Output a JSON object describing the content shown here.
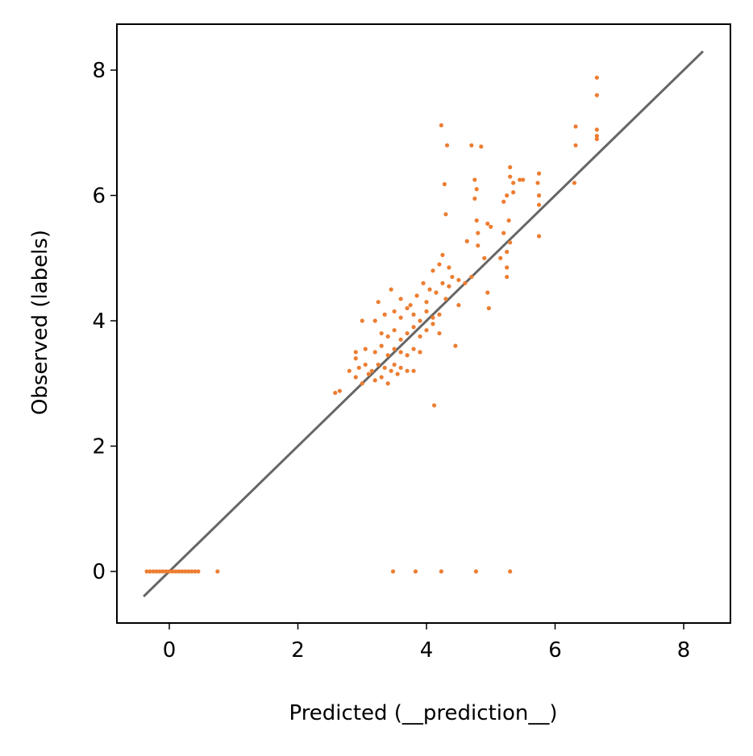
{
  "chart_data": {
    "type": "scatter",
    "xlabel": "Predicted (__prediction__)",
    "ylabel": "Observed (labels)",
    "xlim": [
      -0.815,
      8.727
    ],
    "ylim": [
      -0.823,
      8.733
    ],
    "xticks": [
      0,
      2,
      4,
      6,
      8
    ],
    "yticks": [
      0,
      2,
      4,
      6,
      8
    ],
    "grid": false,
    "reference_line": {
      "color": "#666666",
      "x": [
        -0.4,
        8.3
      ],
      "values": [
        -0.4,
        8.3
      ]
    },
    "series": [
      {
        "color": "#ed7d31",
        "x": [
          -0.35,
          -0.3,
          -0.25,
          -0.2,
          -0.15,
          -0.1,
          -0.05,
          0,
          0.05,
          0.1,
          0.15,
          0.2,
          0.25,
          0.3,
          0.35,
          0.4,
          0.45,
          0.75,
          3.48,
          3.83,
          4.23,
          4.77,
          5.3,
          2.58,
          2.65,
          2.8,
          2.9,
          2.95,
          3.0,
          3.05,
          3.1,
          3.15,
          3.2,
          3.25,
          3.3,
          3.35,
          3.4,
          3.45,
          3.5,
          3.55,
          3.6,
          3.7,
          3.8,
          2.9,
          3.05,
          3.2,
          3.3,
          3.4,
          3.5,
          3.6,
          3.7,
          3.8,
          3.9,
          3.3,
          3.4,
          3.5,
          3.6,
          3.7,
          3.8,
          3.9,
          4.0,
          4.1,
          4.2,
          3.35,
          3.5,
          3.6,
          3.7,
          3.8,
          3.9,
          4.0,
          4.1,
          4.2,
          3.2,
          3.25,
          3.45,
          3.6,
          3.75,
          3.85,
          3.95,
          4.05,
          4.15,
          4.25,
          4.35,
          4.4,
          4.5,
          4.6,
          4.7,
          4.1,
          4.2,
          4.25,
          4.35,
          4.5,
          4.45,
          4.12,
          4.0,
          4.3,
          3.0,
          2.9,
          4.23,
          4.32,
          4.28,
          4.3,
          4.7,
          4.85,
          4.75,
          4.78,
          4.75,
          4.78,
          4.8,
          4.8,
          4.9,
          4.63,
          4.95,
          4.97,
          4.95,
          5.0,
          5.15,
          5.2,
          5.25,
          5.28,
          5.3,
          5.3,
          5.35,
          5.3,
          5.25,
          5.25,
          5.25,
          5.2,
          5.35,
          5.45,
          5.5,
          5.75,
          5.75,
          5.75,
          5.75,
          5.73,
          6.32,
          6.32,
          6.3,
          6.65,
          6.65,
          6.65,
          6.65,
          6.65
        ],
        "values": [
          0,
          0,
          0,
          0,
          0,
          0,
          0,
          0,
          0,
          0,
          0,
          0,
          0,
          0,
          0,
          0,
          0,
          0,
          0,
          0,
          0,
          0,
          0,
          2.85,
          2.88,
          3.2,
          3.1,
          3.25,
          3.0,
          3.3,
          3.15,
          3.2,
          3.05,
          3.3,
          3.1,
          3.25,
          3.0,
          3.2,
          3.3,
          3.15,
          3.25,
          3.2,
          3.2,
          3.5,
          3.55,
          3.5,
          3.6,
          3.45,
          3.55,
          3.5,
          3.45,
          3.55,
          3.5,
          3.8,
          3.75,
          3.85,
          3.7,
          3.8,
          3.9,
          3.75,
          3.85,
          3.95,
          3.8,
          4.1,
          4.15,
          4.05,
          4.2,
          4.1,
          4.0,
          4.15,
          4.05,
          4.1,
          4.0,
          4.3,
          4.5,
          4.35,
          4.25,
          4.4,
          4.6,
          4.5,
          4.45,
          4.6,
          4.55,
          4.7,
          4.65,
          4.6,
          4.7,
          4.8,
          4.9,
          5.05,
          4.85,
          4.25,
          3.6,
          2.65,
          4.3,
          4.35,
          4.0,
          3.4,
          7.12,
          6.8,
          6.18,
          5.7,
          6.8,
          6.78,
          6.25,
          6.1,
          5.95,
          5.6,
          5.4,
          5.2,
          5.0,
          5.27,
          4.45,
          4.2,
          5.55,
          5.5,
          5.0,
          5.9,
          6.0,
          5.6,
          6.45,
          6.3,
          6.2,
          5.25,
          5.1,
          4.85,
          4.7,
          5.4,
          6.05,
          6.25,
          6.25,
          6.35,
          6.0,
          5.85,
          5.35,
          6.2,
          7.1,
          6.8,
          6.2,
          7.88,
          7.6,
          7.05,
          6.95,
          6.9
        ]
      }
    ]
  }
}
